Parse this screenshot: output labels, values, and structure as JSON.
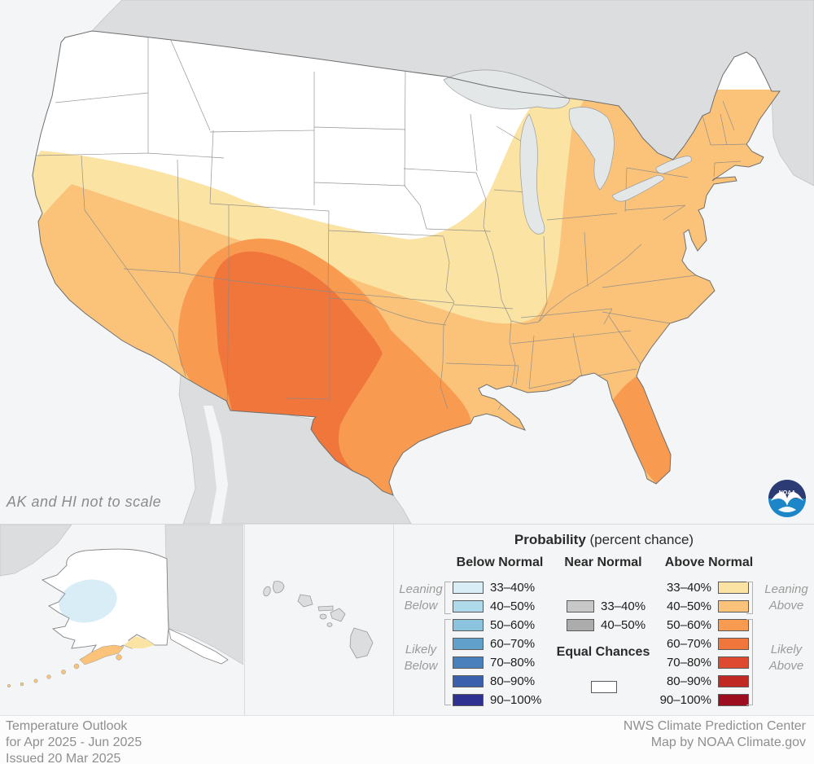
{
  "map": {
    "note": "AK and HI not to scale",
    "logo": {
      "text": "NOAA",
      "navy": "#2C3B74",
      "blue": "#1D86C9"
    }
  },
  "map_colors": {
    "ocean": "#F4F5F6",
    "land": "#DBDDDE",
    "lake": "#E3E7E8",
    "equal_chances": "#FFFFFF"
  },
  "legend": {
    "title_bold": "Probability",
    "title_rest": " (percent chance)",
    "below": {
      "header": "Below Normal",
      "rows": [
        {
          "label": "33–40%",
          "color": "#D8EDF6"
        },
        {
          "label": "40–50%",
          "color": "#AEDAEB"
        },
        {
          "label": "50–60%",
          "color": "#8CC3DF"
        },
        {
          "label": "60–70%",
          "color": "#61A0CB"
        },
        {
          "label": "70–80%",
          "color": "#4A81BC"
        },
        {
          "label": "80–90%",
          "color": "#3A5FAD"
        },
        {
          "label": "90–100%",
          "color": "#2E3192"
        }
      ]
    },
    "near": {
      "header": "Near Normal",
      "rows": [
        {
          "label": "33–40%",
          "color": "#C8C8C8"
        },
        {
          "label": "40–50%",
          "color": "#ACACAC"
        }
      ],
      "equal_label": "Equal Chances",
      "equal_color": "#FFFFFF"
    },
    "above": {
      "header": "Above Normal",
      "rows": [
        {
          "label": "33–40%",
          "color": "#FBE3A3"
        },
        {
          "label": "40–50%",
          "color": "#FAC379"
        },
        {
          "label": "50–60%",
          "color": "#F89B50"
        },
        {
          "label": "60–70%",
          "color": "#F0763C"
        },
        {
          "label": "70–80%",
          "color": "#DE4A2F"
        },
        {
          "label": "80–90%",
          "color": "#C02823"
        },
        {
          "label": "90–100%",
          "color": "#9C0D20"
        }
      ]
    },
    "annotations": {
      "leaning_below": "Leaning Below",
      "likely_below": "Likely Below",
      "leaning_above": "Leaning Above",
      "likely_above": "Likely Above"
    }
  },
  "footer": {
    "left_lines": [
      "Temperature Outlook",
      "for Apr 2025 - Jun 2025",
      "Issued 20 Mar 2025"
    ],
    "right_lines": [
      "NWS Climate Prediction Center",
      "Map by NOAA Climate.gov"
    ]
  }
}
